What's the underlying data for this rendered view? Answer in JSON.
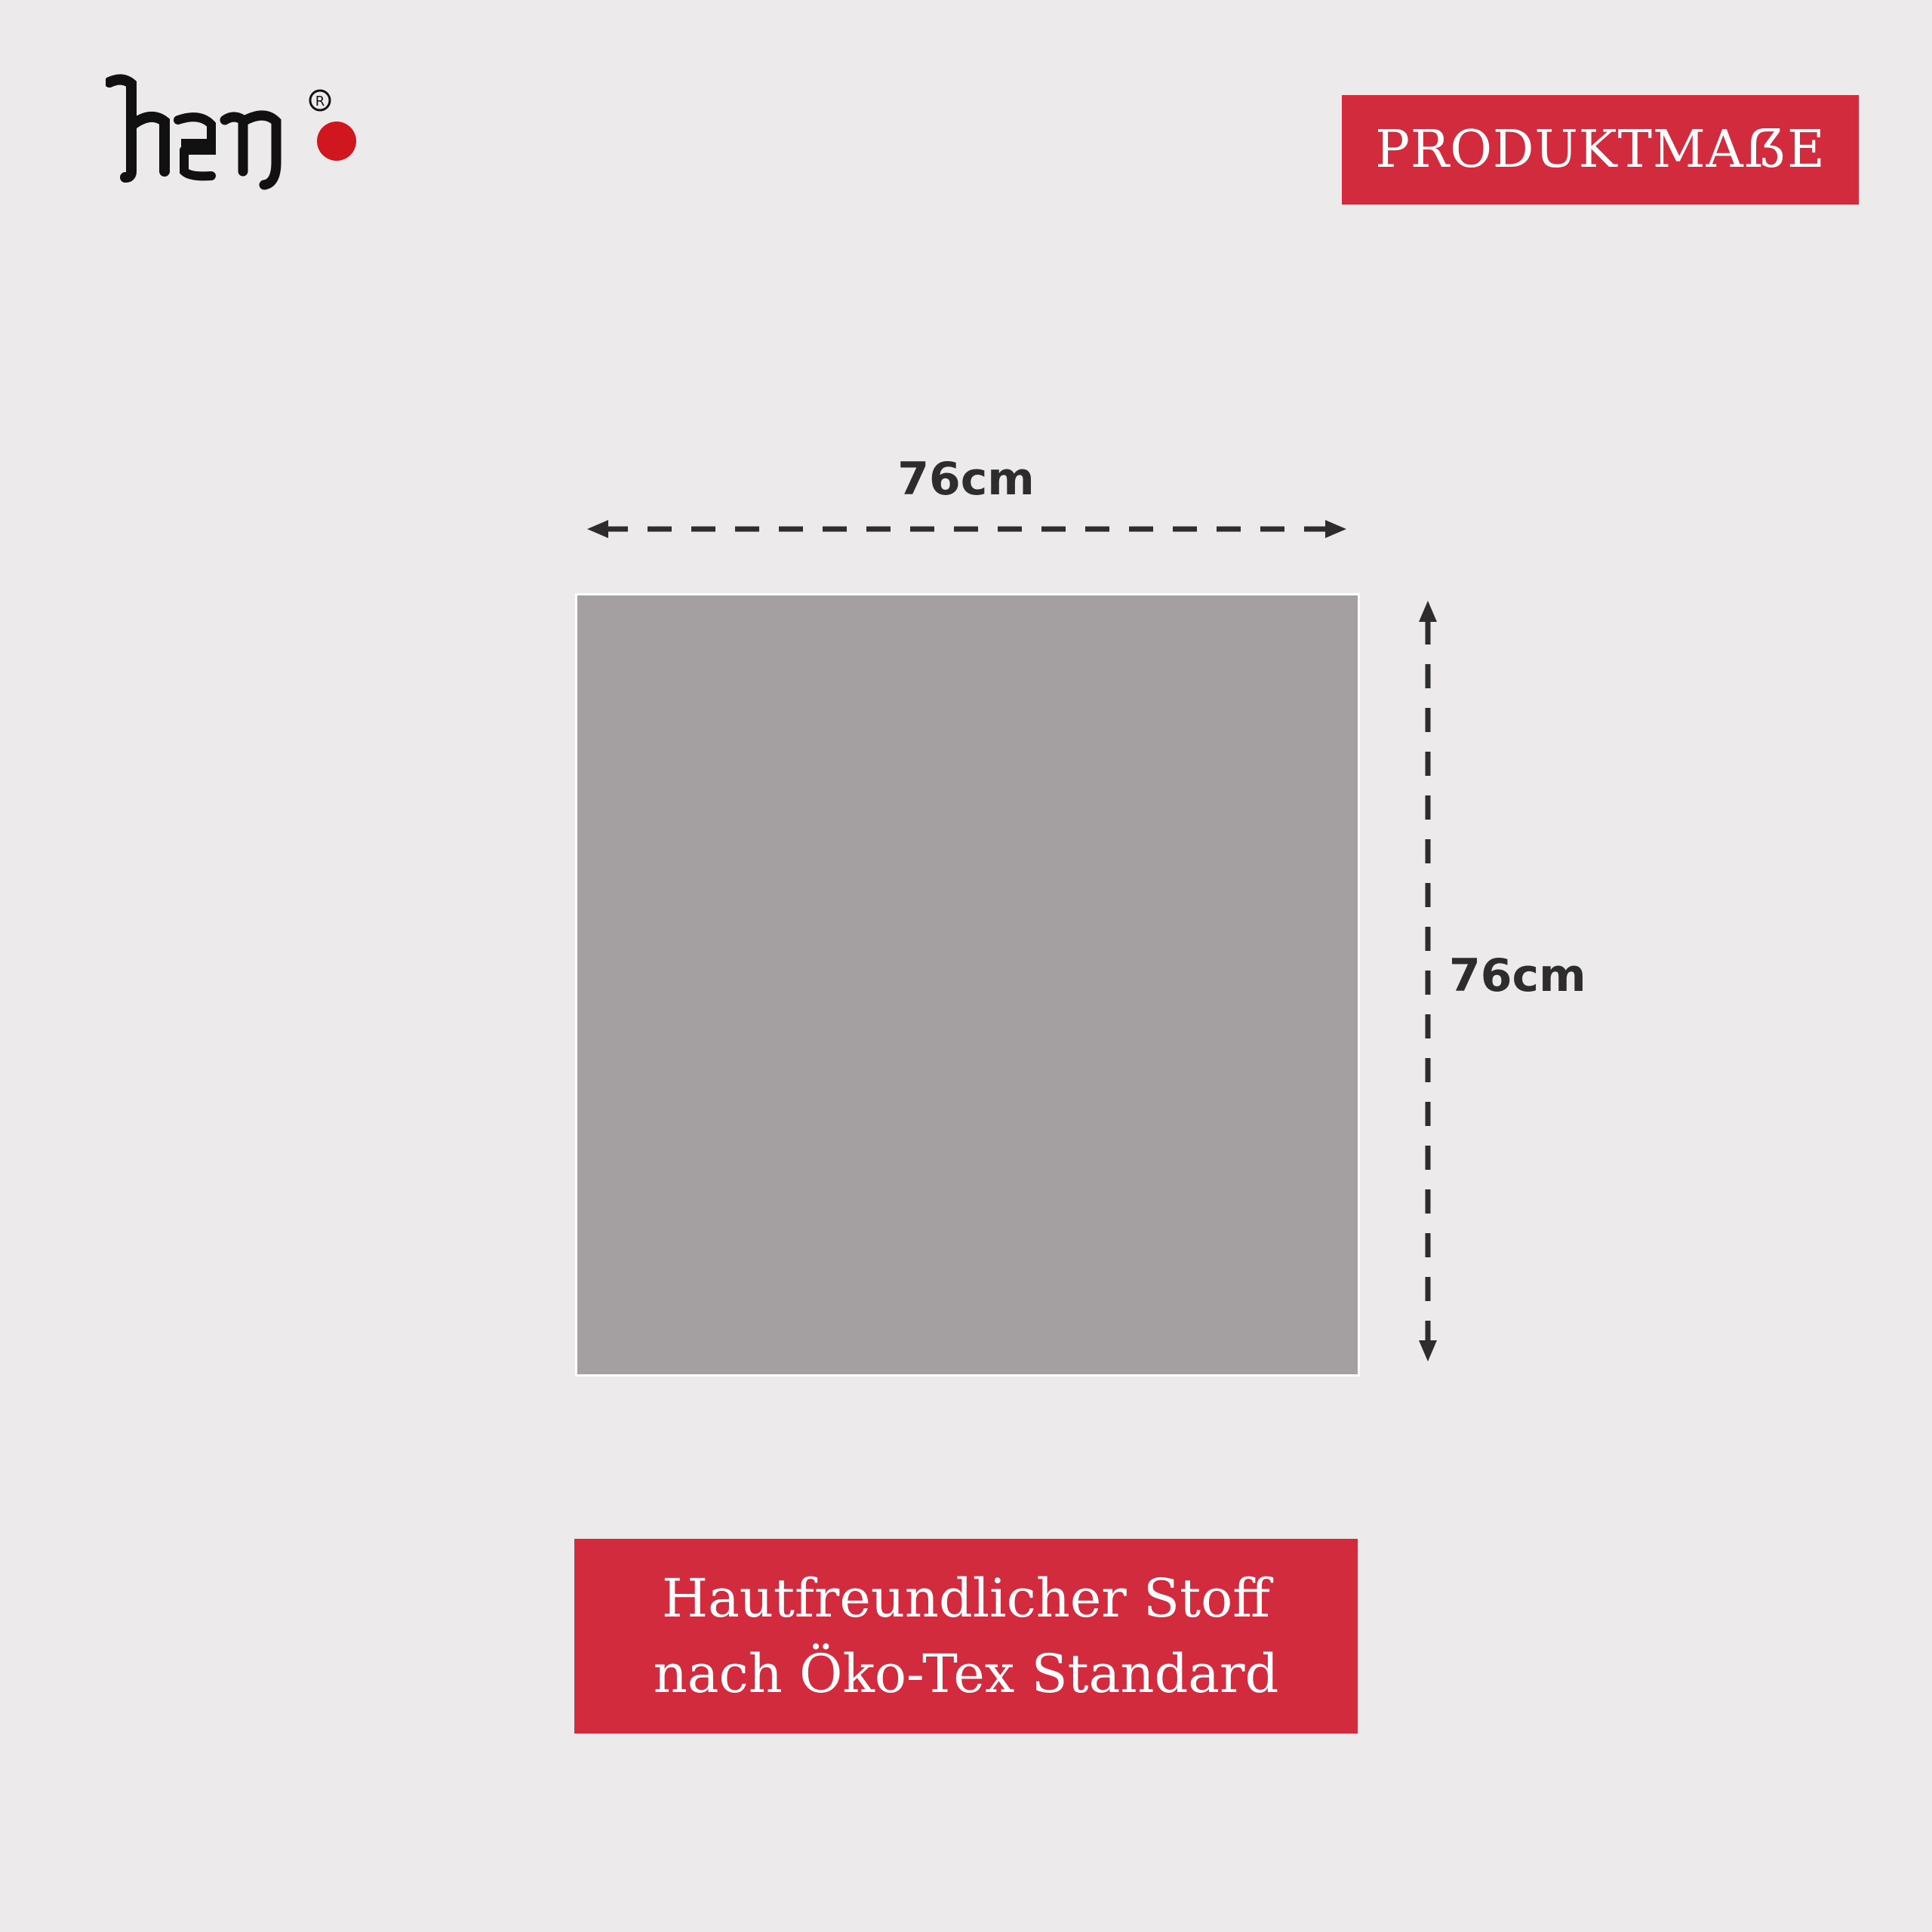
{
  "brand": {
    "name": "heo",
    "accent_color": "#d22b3d",
    "dot_color": "#d0161e"
  },
  "header": {
    "badge_label": "PRODUKTMAẞE"
  },
  "product": {
    "color": "#a49fa0",
    "width_label": "76cm",
    "height_label": "76cm"
  },
  "footer": {
    "line1": "Hautfreundlicher Stoff",
    "line2": "nach Öko-Tex Standard"
  }
}
